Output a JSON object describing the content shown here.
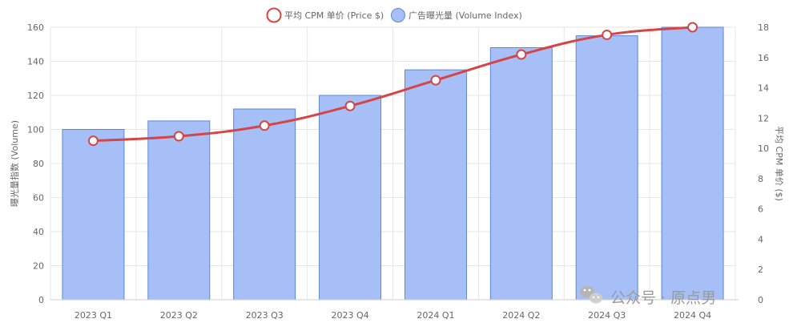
{
  "chart_data": {
    "type": "bar",
    "categories": [
      "2023 Q1",
      "2023 Q2",
      "2023 Q3",
      "2023 Q4",
      "2024 Q1",
      "2024 Q2",
      "2024 Q3",
      "2024 Q4"
    ],
    "series": [
      {
        "name": "广告曝光量 (Volume Index)",
        "type": "bar",
        "axis": "left",
        "values": [
          100,
          105,
          112,
          120,
          135,
          148,
          155,
          160
        ],
        "color": "#a6c0f7",
        "border_color": "#5b86d6"
      },
      {
        "name": "平均 CPM 单价 (Price $)",
        "type": "line",
        "axis": "right",
        "values": [
          10.5,
          10.8,
          11.5,
          12.8,
          14.5,
          16.2,
          17.5,
          18.0
        ],
        "color": "#d64545"
      }
    ],
    "ylabel": "曝光量指数 (Volume)",
    "y2label": "平均 CPM 单价 ($)",
    "ylim": [
      0,
      160
    ],
    "y2lim": [
      0,
      18
    ],
    "yticks": [
      "0",
      "20",
      "40",
      "60",
      "80",
      "100",
      "120",
      "140",
      "160"
    ],
    "y2ticks": [
      "0",
      "2",
      "4",
      "6",
      "8",
      "10",
      "12",
      "14",
      "16",
      "18"
    ],
    "legend_position": "top-center",
    "grid": true
  },
  "watermark": {
    "text": "公众号 · 原点男",
    "icon": "wechat-icon"
  }
}
